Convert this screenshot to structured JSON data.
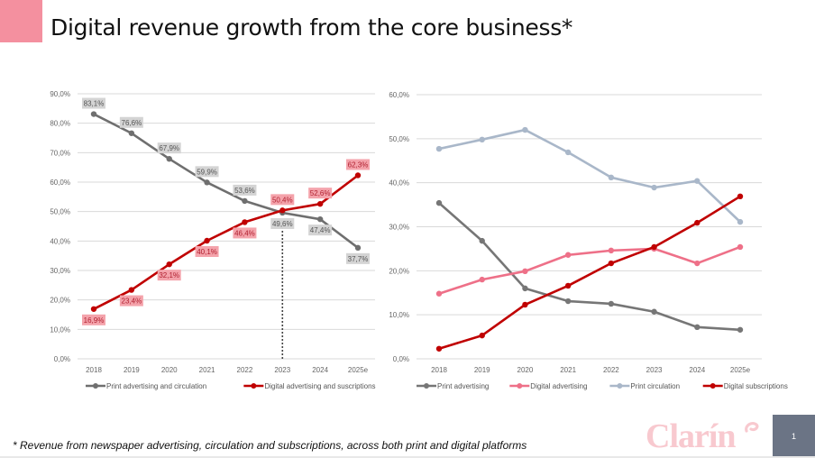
{
  "slide": {
    "title": "Digital revenue growth from the core business*",
    "footnote": "* Revenue from newspaper advertising, circulation and subscriptions, across both print and digital platforms",
    "logo_text": "Clarín",
    "page_number": "1",
    "colors": {
      "accent": "#f4909f",
      "logo": "#f8c9cf",
      "page_box": "#6b7485"
    }
  },
  "chart_data": [
    {
      "type": "line",
      "title": "",
      "xlabel": "",
      "ylabel": "",
      "categories": [
        "2018",
        "2019",
        "2020",
        "2021",
        "2022",
        "2023",
        "2024",
        "2025e"
      ],
      "ylim": [
        0,
        90
      ],
      "yticks": [
        0,
        10,
        20,
        30,
        40,
        50,
        60,
        70,
        80,
        90
      ],
      "ytick_labels": [
        "0,0%",
        "10,0%",
        "20,0%",
        "30,0%",
        "40,0%",
        "50,0%",
        "60,0%",
        "70,0%",
        "80,0%",
        "90,0%"
      ],
      "grid": true,
      "legend": "bottom",
      "annotation": {
        "type": "vertical-dotted-line",
        "at": "2023"
      },
      "series": [
        {
          "name": "Print advertising and circulation",
          "color": "#6f6f6f",
          "label_bg": "#d4d4d4",
          "label_color": "#555555",
          "values": [
            83.1,
            76.6,
            67.9,
            59.9,
            53.6,
            49.6,
            47.4,
            37.7
          ],
          "labels": [
            "83,1%",
            "76,6%",
            "67,9%",
            "59,9%",
            "53,6%",
            "49,6%",
            "47,4%",
            "37,7%"
          ],
          "label_pos": [
            "above",
            "above",
            "above",
            "above",
            "above",
            "below",
            "below",
            "below"
          ]
        },
        {
          "name": "Digital advertising and suscriptions",
          "color": "#c00000",
          "label_bg": "#f4a3ab",
          "label_color": "#b02030",
          "values": [
            16.9,
            23.4,
            32.1,
            40.1,
            46.4,
            50.4,
            52.6,
            62.3
          ],
          "labels": [
            "16,9%",
            "23,4%",
            "32,1%",
            "40,1%",
            "46,4%",
            "50,4%",
            "52,6%",
            "62,3%"
          ],
          "label_pos": [
            "below",
            "below",
            "below",
            "below",
            "below",
            "above",
            "above",
            "above"
          ]
        }
      ]
    },
    {
      "type": "line",
      "title": "",
      "xlabel": "",
      "ylabel": "",
      "categories": [
        "2018",
        "2019",
        "2020",
        "2021",
        "2022",
        "2023",
        "2024",
        "2025e"
      ],
      "ylim": [
        0,
        60
      ],
      "yticks": [
        0,
        10,
        20,
        30,
        40,
        50,
        60
      ],
      "ytick_labels": [
        "0,0%",
        "10,0%",
        "20,0%",
        "30,0%",
        "40,0%",
        "50,0%",
        "60,0%"
      ],
      "grid": true,
      "legend": "bottom",
      "series": [
        {
          "name": "Print advertising",
          "color": "#767676",
          "values": [
            35.4,
            26.8,
            16.0,
            13.1,
            12.5,
            10.7,
            7.2,
            6.6
          ]
        },
        {
          "name": "Digital advertising",
          "color": "#ee7088",
          "values": [
            14.8,
            18.0,
            19.9,
            23.6,
            24.6,
            25.0,
            21.7,
            25.4
          ]
        },
        {
          "name": "Print circulation",
          "color": "#a9b7c9",
          "values": [
            47.7,
            49.8,
            52.0,
            46.9,
            41.2,
            38.9,
            40.4,
            31.1
          ]
        },
        {
          "name": "Digital subscriptions",
          "color": "#c00000",
          "values": [
            2.3,
            5.3,
            12.3,
            16.6,
            21.7,
            25.4,
            30.9,
            36.9
          ]
        }
      ]
    }
  ]
}
